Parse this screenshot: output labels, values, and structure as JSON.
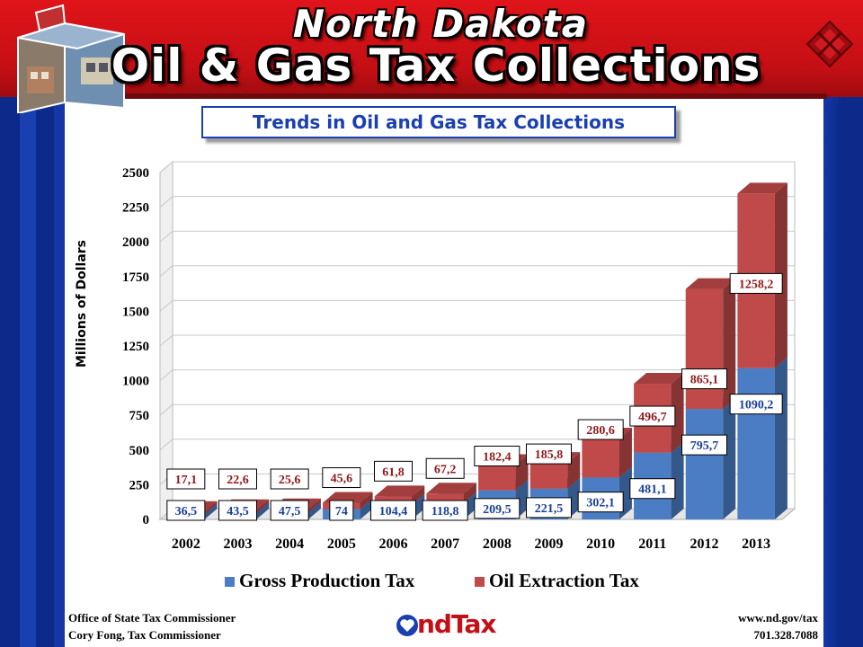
{
  "header": {
    "title_line1": "North Dakota",
    "title_line2": "Oil & Gas Tax Collections",
    "brand_color": "#c40f14"
  },
  "subtitle": "Trends in Oil and Gas Tax Collections",
  "footer": {
    "left_line1": "Office of State Tax Commissioner",
    "left_line2": "Cory Fong, Tax Commissioner",
    "right_line1": "www.nd.gov/tax",
    "right_line2": "701.328.7088",
    "logo_text": "ndTax"
  },
  "chart_data": {
    "type": "bar",
    "stacked": true,
    "three_d": true,
    "title": "Trends in Oil and Gas Tax Collections",
    "xlabel": "",
    "ylabel": "Millions of Dollars",
    "ylim": [
      0,
      2500
    ],
    "yticks": [
      0,
      250,
      500,
      750,
      1000,
      1250,
      1500,
      1750,
      2000,
      2250,
      2500
    ],
    "grid": true,
    "legend_position": "bottom",
    "categories": [
      "2002",
      "2003",
      "2004",
      "2005",
      "2006",
      "2007",
      "2008",
      "2009",
      "2010",
      "2011",
      "2012",
      "2013"
    ],
    "series": [
      {
        "name": "Gross Production Tax",
        "color": "#4a7dc4",
        "values": [
          36.5,
          43.5,
          47.5,
          74,
          104.4,
          118.8,
          209.5,
          221.5,
          302.1,
          481.1,
          795.7,
          1090.2
        ],
        "labels": [
          "36,5",
          "43,5",
          "47,5",
          "74",
          "104,4",
          "118,8",
          "209,5",
          "221,5",
          "302,1",
          "481,1",
          "795,7",
          "1090,2"
        ]
      },
      {
        "name": "Oil Extraction Tax",
        "color": "#c0494a",
        "values": [
          17.1,
          22.6,
          25.6,
          45.6,
          61.8,
          67.2,
          182.4,
          185.8,
          280.6,
          496.7,
          865.1,
          1258.2
        ],
        "labels": [
          "17,1",
          "22,6",
          "25,6",
          "45,6",
          "61,8",
          "67,2",
          "182,4",
          "185,8",
          "280,6",
          "496,7",
          "865,1",
          "1258,2"
        ]
      }
    ]
  }
}
